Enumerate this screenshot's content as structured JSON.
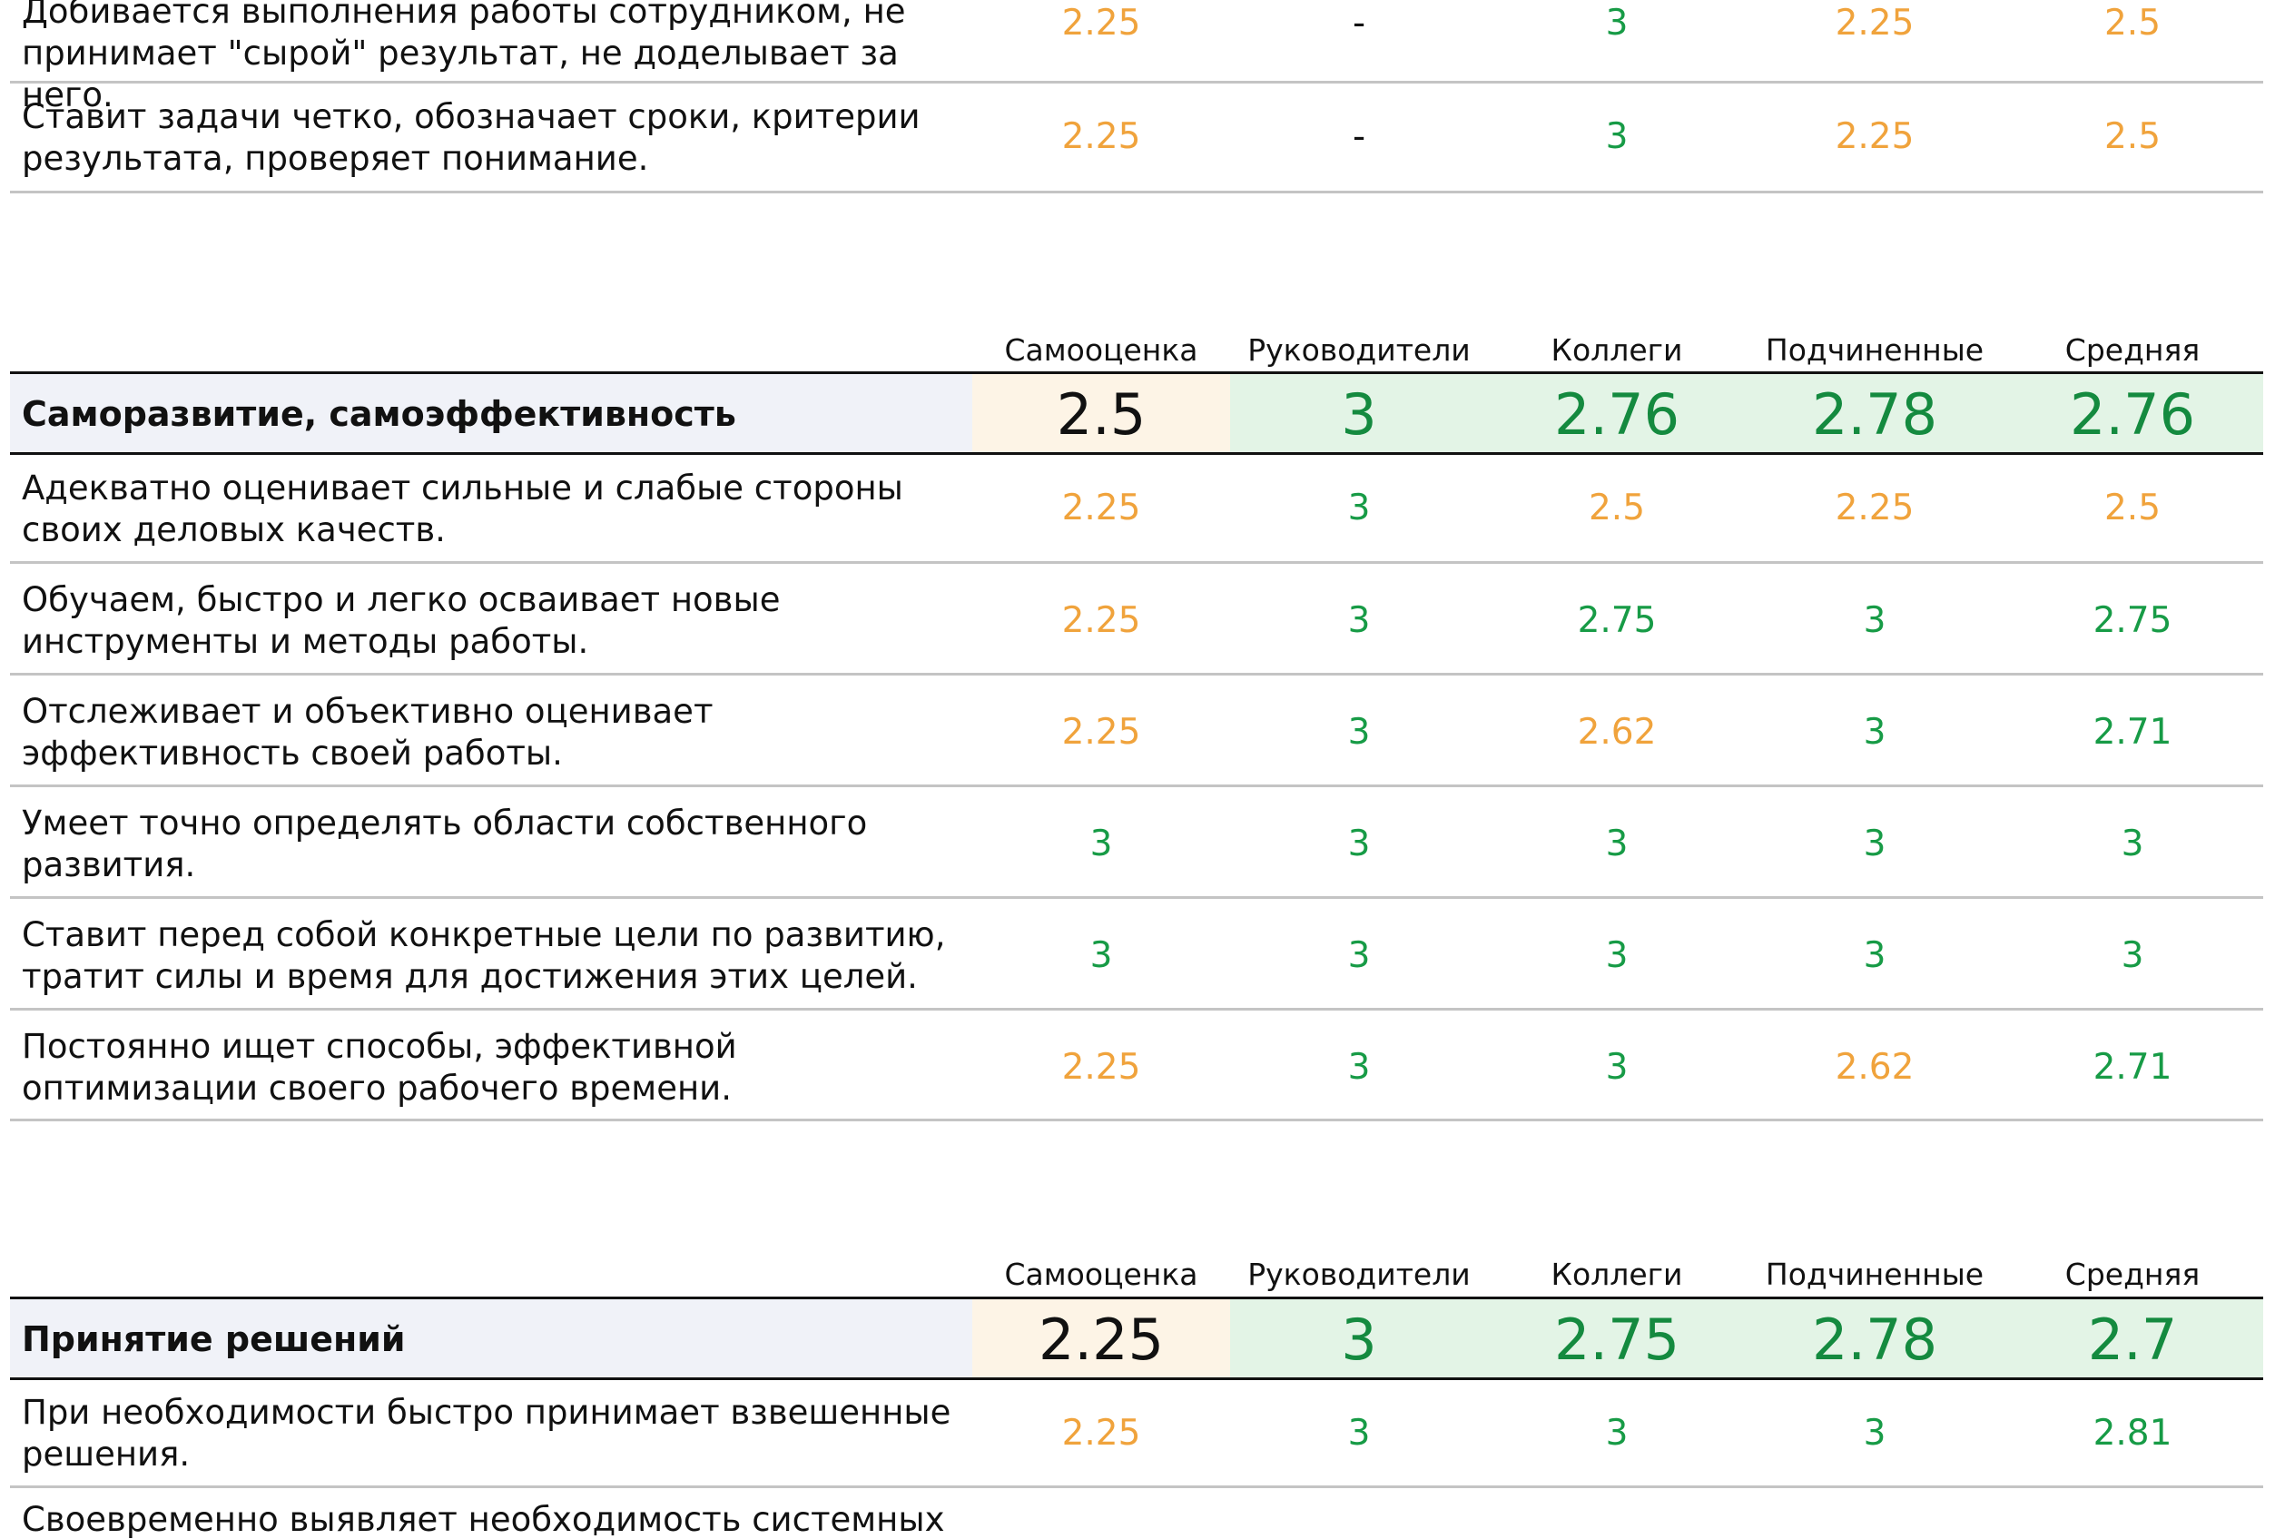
{
  "colors": {
    "orange": "#f0a33c",
    "green": "#179b46",
    "header_green": "#148a3f",
    "header_title_bg": "#f0f2f8",
    "header_self_bg": "#fdf4e6",
    "header_green_bg": "#e3f4e6"
  },
  "columns": [
    "Самооценка",
    "Руководители",
    "Коллеги",
    "Подчиненные",
    "Средняя"
  ],
  "top_rows": [
    {
      "text": "Добивается выполнения работы сотрудником, не принимает \"сырой\" результат, не доделывает за него.",
      "values": [
        "2.25",
        "-",
        "3",
        "2.25",
        "2.5"
      ],
      "colors": [
        "orange",
        "black",
        "green",
        "orange",
        "orange"
      ]
    },
    {
      "text": "Ставит задачи четко, обозначает сроки, критерии результата, проверяет понимание.",
      "values": [
        "2.25",
        "-",
        "3",
        "2.25",
        "2.5"
      ],
      "colors": [
        "orange",
        "black",
        "green",
        "orange",
        "orange"
      ]
    }
  ],
  "section1": {
    "title": "Саморазвитие, самоэффективность",
    "summary": [
      "2.5",
      "3",
      "2.76",
      "2.78",
      "2.76"
    ],
    "rows": [
      {
        "text": "Адекватно оценивает сильные и слабые стороны своих деловых качеств.",
        "values": [
          "2.25",
          "3",
          "2.5",
          "2.25",
          "2.5"
        ],
        "colors": [
          "orange",
          "green",
          "orange",
          "orange",
          "orange"
        ]
      },
      {
        "text": "Обучаем, быстро и легко осваивает новые инструменты и методы работы.",
        "values": [
          "2.25",
          "3",
          "2.75",
          "3",
          "2.75"
        ],
        "colors": [
          "orange",
          "green",
          "green",
          "green",
          "green"
        ]
      },
      {
        "text": "Отслеживает и объективно оценивает эффективность своей работы.",
        "values": [
          "2.25",
          "3",
          "2.62",
          "3",
          "2.71"
        ],
        "colors": [
          "orange",
          "green",
          "orange",
          "green",
          "green"
        ]
      },
      {
        "text": "Умеет точно определять области собственного развития.",
        "values": [
          "3",
          "3",
          "3",
          "3",
          "3"
        ],
        "colors": [
          "green",
          "green",
          "green",
          "green",
          "green"
        ]
      },
      {
        "text": "Ставит перед собой конкретные цели по развитию, тратит силы и время для достижения этих целей.",
        "values": [
          "3",
          "3",
          "3",
          "3",
          "3"
        ],
        "colors": [
          "green",
          "green",
          "green",
          "green",
          "green"
        ]
      },
      {
        "text": "Постоянно ищет способы, эффективной оптимизации своего рабочего времени.",
        "values": [
          "2.25",
          "3",
          "3",
          "2.62",
          "2.71"
        ],
        "colors": [
          "orange",
          "green",
          "green",
          "orange",
          "green"
        ]
      }
    ]
  },
  "section2": {
    "title": "Принятие решений",
    "summary": [
      "2.25",
      "3",
      "2.75",
      "2.78",
      "2.7"
    ],
    "rows": [
      {
        "text": "При необходимости быстро принимает взвешенные решения.",
        "values": [
          "2.25",
          "3",
          "3",
          "3",
          "2.81"
        ],
        "colors": [
          "orange",
          "green",
          "green",
          "green",
          "green"
        ]
      },
      {
        "text": "Своевременно выявляет необходимость системных",
        "values": [],
        "colors": []
      }
    ]
  }
}
